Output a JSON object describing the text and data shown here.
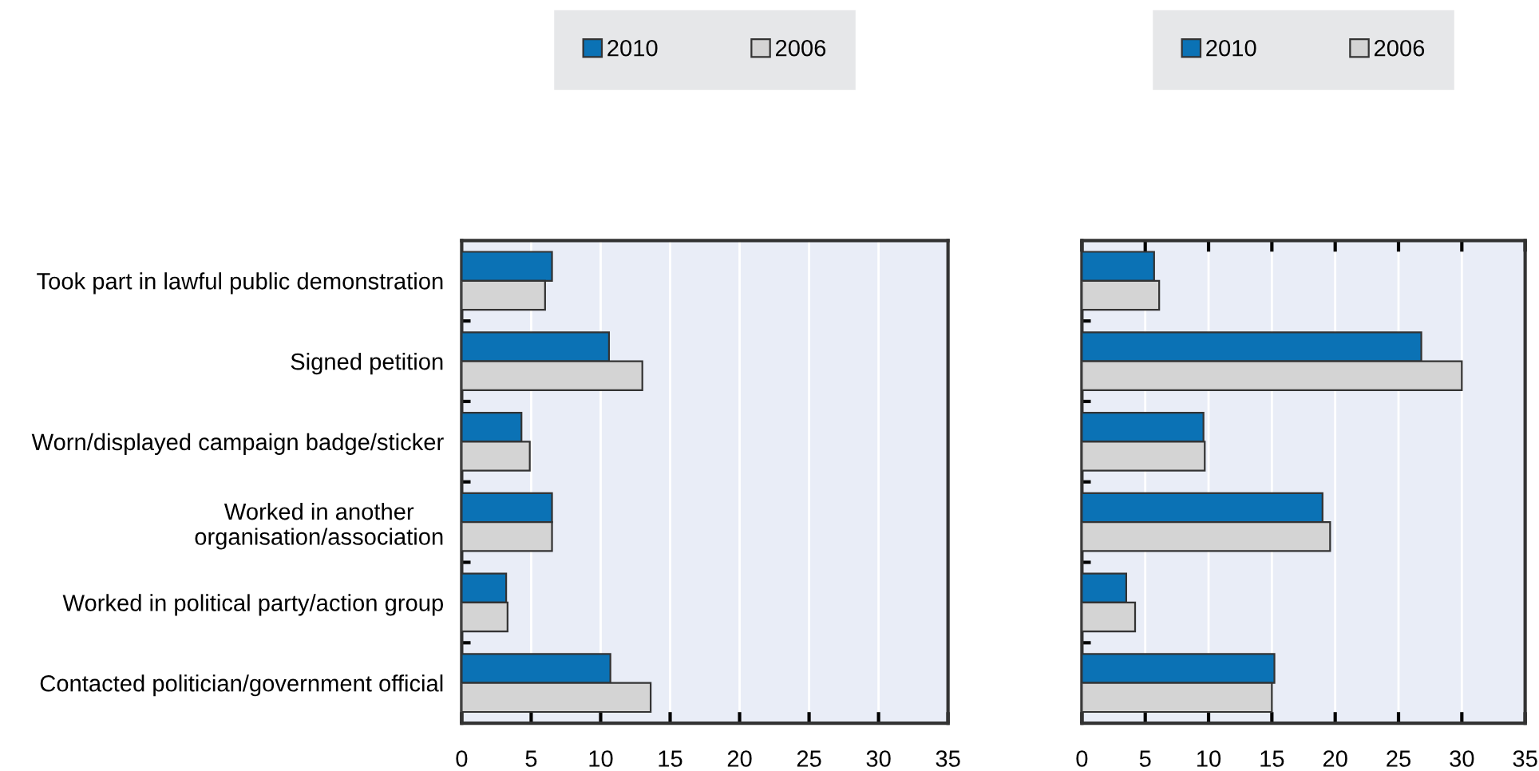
{
  "chart_data": [
    {
      "type": "bar",
      "orientation": "horizontal",
      "categories": [
        "Took part in lawful public demonstration",
        "Signed petition",
        "Worn/displayed campaign badge/sticker",
        "Worked in another\norganisation/association",
        "Worked in political party/action group",
        "Contacted politician/government official"
      ],
      "series": [
        {
          "name": "2010",
          "color": "#0b72b5",
          "values": [
            6.5,
            10.6,
            4.3,
            6.5,
            3.2,
            10.7
          ]
        },
        {
          "name": "2006",
          "color": "#d4d4d4",
          "values": [
            6.0,
            13.0,
            4.9,
            6.5,
            3.3,
            13.6
          ]
        }
      ],
      "xlim": [
        0,
        35
      ],
      "xticks": [
        0,
        5,
        10,
        15,
        20,
        25,
        30,
        35
      ],
      "grid": "x",
      "legend": "top"
    },
    {
      "type": "bar",
      "orientation": "horizontal",
      "categories": [
        null,
        null,
        null,
        null,
        null,
        null
      ],
      "series": [
        {
          "name": "2010",
          "color": "#0b72b5",
          "values": [
            5.7,
            26.8,
            9.6,
            19.0,
            3.5,
            15.2
          ]
        },
        {
          "name": "2006",
          "color": "#d4d4d4",
          "values": [
            6.1,
            30.0,
            9.7,
            19.6,
            4.2,
            15.0
          ]
        }
      ],
      "xlim": [
        0,
        35
      ],
      "xticks": [
        0,
        5,
        10,
        15,
        20,
        25,
        30,
        35
      ],
      "tick_labels": "x",
      "grid": "x",
      "legend": "top"
    }
  ]
}
